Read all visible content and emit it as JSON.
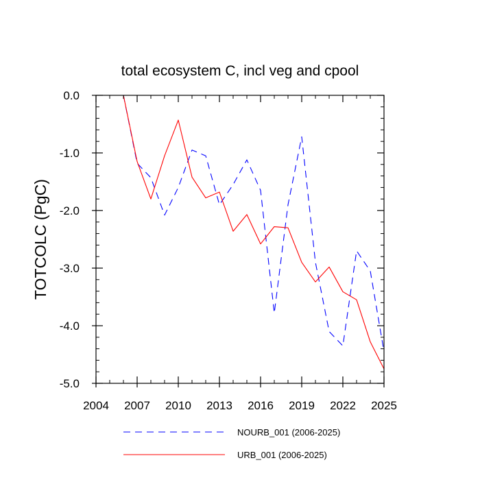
{
  "chart_data": {
    "type": "line",
    "title": "total ecosystem C, incl veg and cpool",
    "xlabel": "",
    "ylabel": "TOTCOLC  (PgC)",
    "xlim": [
      2004,
      2025
    ],
    "ylim": [
      -5.0,
      0.0
    ],
    "xticks": [
      2004,
      2007,
      2010,
      2013,
      2016,
      2019,
      2022,
      2025
    ],
    "xtick_labels": [
      "2004",
      "2007",
      "2010",
      "2013",
      "2016",
      "2019",
      "2022",
      "2025"
    ],
    "yticks": [
      0.0,
      -1.0,
      -2.0,
      -3.0,
      -4.0,
      -5.0
    ],
    "ytick_labels": [
      "0.0",
      "-1.0",
      "-2.0",
      "-3.0",
      "-4.0",
      "-5.0"
    ],
    "legend_position": "bottom",
    "x": [
      2006,
      2007,
      2008,
      2009,
      2010,
      2011,
      2012,
      2013,
      2014,
      2015,
      2016,
      2017,
      2018,
      2019,
      2020,
      2021,
      2022,
      2023,
      2024,
      2025
    ],
    "series": [
      {
        "name": "NOURB_001 (2006-2025)",
        "color": "#0000ff",
        "style": "dashed",
        "values": [
          0.0,
          -1.18,
          -1.43,
          -2.08,
          -1.6,
          -0.95,
          -1.05,
          -1.9,
          -1.55,
          -1.12,
          -1.65,
          -3.78,
          -1.9,
          -0.72,
          -2.9,
          -4.1,
          -4.35,
          -2.7,
          -3.05,
          -4.45
        ]
      },
      {
        "name": "URB_001 (2006-2025)",
        "color": "#ff0000",
        "style": "solid",
        "values": [
          0.0,
          -1.15,
          -1.8,
          -1.05,
          -0.43,
          -1.42,
          -1.78,
          -1.68,
          -2.36,
          -2.07,
          -2.58,
          -2.28,
          -2.3,
          -2.9,
          -3.24,
          -2.98,
          -3.41,
          -3.55,
          -4.28,
          -4.75
        ]
      }
    ]
  }
}
